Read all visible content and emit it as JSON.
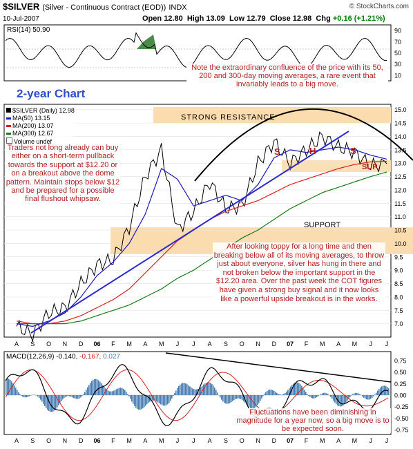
{
  "header": {
    "symbol": "$SILVER",
    "description": "(Silver - Continuous Contract (EOD))",
    "exchange": "INDX",
    "source": "© StockCharts.com",
    "date": "10-Jul-2007",
    "open_label": "Open",
    "open": "12.80",
    "high_label": "High",
    "high": "13.09",
    "low_label": "Low",
    "low": "12.79",
    "close_label": "Close",
    "close": "12.98",
    "chg_label": "Chg",
    "chg": "+0.16 (+1.21%)"
  },
  "colors": {
    "price": "#000000",
    "ma50": "#1a1ab8",
    "ma200": "#d62020",
    "ma300": "#1a7a1a",
    "band": "#fbdcae",
    "trend": "#2a2ad0",
    "note": "#b22222",
    "macd_hist": "#4a7fb5"
  },
  "rsi": {
    "legend": "RSI(14) 50.90",
    "ticks": [
      "90",
      "70",
      "50",
      "30",
      "10"
    ]
  },
  "annotations": {
    "two_year": "2-year Chart",
    "confluence": "Note the extraordinary confluence of the price with its 50, 200 and 300-day moving averages, a rare event that invariably leads to a big move.",
    "resistance": "STRONG RESISTANCE",
    "support": "SUPPORT",
    "sup": "SUP.",
    "s1": "S",
    "h": "H",
    "s2": "S",
    "traders": "Traders not long already can buy either on a short-term pullback towards the support at $12.20 or on a breakout above the dome pattern. Maintain stops below $12 and be prepared for a possible final flushout whipsaw.",
    "after": "After looking toppy for a long time and then breaking below all of its moving averages, to throw just about everyone, silver has hung in there and not broken below the important support in the $12.20 area. Over the past week the COT figures have given a strong buy signal and it now looks like a powerful upside breakout is in the works.",
    "fluct": "Fluctuations have been diminishing in magnitude for a year now, so a big move is to be expected soon."
  },
  "legend": {
    "price": "$SILVER (Daily) 12.98",
    "ma50": "MA(50) 13.15",
    "ma200": "MA(200) 13.07",
    "ma300": "MA(300) 12.67",
    "volume": "Volume undef"
  },
  "price_axis": [
    "15.0",
    "14.5",
    "14.0",
    "13.5",
    "13.0",
    "12.5",
    "12.0",
    "11.5",
    "11.0",
    "10.5",
    "10.0",
    "9.5",
    "9.0",
    "8.5",
    "8.0",
    "7.5",
    "7.0"
  ],
  "macd": {
    "legend_a": "MACD(12,26,9) -0.140, ",
    "legend_b": "-0.167, ",
    "legend_c": "0.027",
    "ticks": [
      "0.75",
      "0.50",
      "0.25",
      "0.00",
      "-0.25",
      "-0.50",
      "-0.75"
    ]
  },
  "months": [
    "A",
    "S",
    "O",
    "N",
    "D",
    "06",
    "F",
    "M",
    "A",
    "M",
    "J",
    "J",
    "A",
    "S",
    "O",
    "N",
    "D",
    "07",
    "F",
    "M",
    "A",
    "M",
    "J",
    "J"
  ],
  "chart_data": {
    "type": "line",
    "title": "$SILVER (Daily) 12.98",
    "x": [
      "2005-08",
      "2005-09",
      "2005-10",
      "2005-11",
      "2005-12",
      "2006-01",
      "2006-02",
      "2006-03",
      "2006-04",
      "2006-05",
      "2006-06",
      "2006-07",
      "2006-08",
      "2006-09",
      "2006-10",
      "2006-11",
      "2006-12",
      "2007-01",
      "2007-02",
      "2007-03",
      "2007-04",
      "2007-05",
      "2007-06",
      "2007-07"
    ],
    "ylim": [
      6.5,
      15.2
    ],
    "series": [
      {
        "name": "$SILVER",
        "values": [
          6.9,
          6.6,
          7.4,
          7.6,
          8.5,
          9.2,
          9.4,
          10.6,
          12.5,
          13.5,
          10.5,
          11.2,
          12.3,
          11.3,
          11.4,
          13.0,
          13.8,
          13.0,
          13.5,
          14.0,
          13.6,
          13.4,
          12.9,
          12.98
        ]
      },
      {
        "name": "MA(50)",
        "values": [
          7.0,
          6.9,
          7.1,
          7.4,
          8.0,
          8.8,
          9.3,
          10.0,
          11.1,
          12.8,
          12.4,
          11.4,
          11.6,
          11.8,
          11.6,
          12.2,
          13.2,
          13.5,
          13.4,
          13.5,
          13.6,
          13.5,
          13.3,
          13.15
        ]
      },
      {
        "name": "MA(200)",
        "values": [
          7.1,
          7.0,
          7.0,
          7.1,
          7.3,
          7.6,
          7.9,
          8.3,
          8.9,
          9.5,
          10.1,
          10.5,
          10.9,
          11.2,
          11.4,
          11.6,
          11.9,
          12.2,
          12.4,
          12.6,
          12.8,
          12.95,
          13.05,
          13.07
        ]
      },
      {
        "name": "MA(300)",
        "values": [
          7.0,
          7.0,
          7.0,
          7.0,
          7.1,
          7.3,
          7.5,
          7.7,
          8.0,
          8.3,
          8.7,
          9.0,
          9.4,
          9.8,
          10.2,
          10.5,
          10.9,
          11.3,
          11.6,
          11.9,
          12.1,
          12.3,
          12.5,
          12.67
        ]
      }
    ],
    "bands": [
      {
        "label": "STRONG RESISTANCE",
        "range": [
          14.5,
          15.1
        ]
      },
      {
        "label": "SUPPORT",
        "range": [
          9.6,
          10.6
        ]
      }
    ]
  }
}
